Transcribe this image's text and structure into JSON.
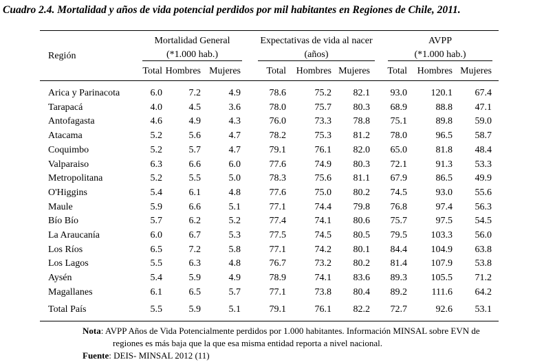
{
  "title": "Cuadro 2.4. Mortalidad y años de vida potencial perdidos por mil habitantes en Regiones de Chile, 2011.",
  "header": {
    "region": "Región",
    "groups": [
      {
        "line1": "Mortalidad General",
        "line2": "(*1.000 hab.)"
      },
      {
        "line1": "Expectativas de vida al nacer",
        "line2": "(años)"
      },
      {
        "line1": "AVPP",
        "line2": "(*1.000 hab.)"
      }
    ],
    "cols": [
      "Total",
      "Hombres",
      "Mujeres",
      "Total",
      "Hombres",
      "Mujeres",
      "Total",
      "Hombres",
      "Mujeres"
    ]
  },
  "rows": [
    {
      "region": "Arica y Parinacota",
      "values": [
        "6.0",
        "7.2",
        "4.9",
        "78.6",
        "75.2",
        "82.1",
        "93.0",
        "120.1",
        "67.4"
      ]
    },
    {
      "region": "Tarapacá",
      "values": [
        "4.0",
        "4.5",
        "3.6",
        "78.0",
        "75.7",
        "80.3",
        "68.9",
        "88.8",
        "47.1"
      ]
    },
    {
      "region": "Antofagasta",
      "values": [
        "4.6",
        "4.9",
        "4.3",
        "76.0",
        "73.3",
        "78.8",
        "75.1",
        "89.8",
        "59.0"
      ]
    },
    {
      "region": "Atacama",
      "values": [
        "5.2",
        "5.6",
        "4.7",
        "78.2",
        "75.3",
        "81.2",
        "78.0",
        "96.5",
        "58.7"
      ]
    },
    {
      "region": "Coquimbo",
      "values": [
        "5.2",
        "5.7",
        "4.7",
        "79.1",
        "76.1",
        "82.0",
        "65.0",
        "81.8",
        "48.4"
      ]
    },
    {
      "region": "Valparaiso",
      "values": [
        "6.3",
        "6.6",
        "6.0",
        "77.6",
        "74.9",
        "80.3",
        "72.1",
        "91.3",
        "53.3"
      ]
    },
    {
      "region": "Metropolitana",
      "values": [
        "5.2",
        "5.5",
        "5.0",
        "78.3",
        "75.6",
        "81.1",
        "67.9",
        "86.5",
        "49.9"
      ]
    },
    {
      "region": "O'Higgins",
      "values": [
        "5.4",
        "6.1",
        "4.8",
        "77.6",
        "75.0",
        "80.2",
        "74.5",
        "93.0",
        "55.6"
      ]
    },
    {
      "region": "Maule",
      "values": [
        "5.9",
        "6.6",
        "5.1",
        "77.1",
        "74.4",
        "79.8",
        "76.8",
        "97.4",
        "56.3"
      ]
    },
    {
      "region": "Bío Bío",
      "values": [
        "5.7",
        "6.2",
        "5.2",
        "77.4",
        "74.1",
        "80.6",
        "75.7",
        "97.5",
        "54.5"
      ]
    },
    {
      "region": "La Araucanía",
      "values": [
        "6.0",
        "6.7",
        "5.3",
        "77.5",
        "74.5",
        "80.5",
        "79.5",
        "103.3",
        "56.0"
      ]
    },
    {
      "region": "Los Ríos",
      "values": [
        "6.5",
        "7.2",
        "5.8",
        "77.1",
        "74.2",
        "80.1",
        "84.4",
        "104.9",
        "63.8"
      ]
    },
    {
      "region": "Los Lagos",
      "values": [
        "5.5",
        "6.3",
        "4.8",
        "76.7",
        "73.2",
        "80.2",
        "81.4",
        "107.9",
        "53.8"
      ]
    },
    {
      "region": "Aysén",
      "values": [
        "5.4",
        "5.9",
        "4.9",
        "78.9",
        "74.1",
        "83.6",
        "89.3",
        "105.5",
        "71.2"
      ]
    },
    {
      "region": "Magallanes",
      "values": [
        "6.1",
        "6.5",
        "5.7",
        "77.1",
        "73.8",
        "80.4",
        "89.2",
        "111.6",
        "64.2"
      ]
    }
  ],
  "total": {
    "region": "Total País",
    "values": [
      "5.5",
      "5.9",
      "5.1",
      "79.1",
      "76.1",
      "82.2",
      "72.7",
      "92.6",
      "53.1"
    ]
  },
  "note": {
    "label": "Nota",
    "line1": ": AVPP Años de Vida Potencialmente perdidos por 1.000 habitantes. Información MINSAL sobre EVN de",
    "line2": "regiones es más baja que la que esa misma entidad reporta a nivel nacional."
  },
  "source": {
    "label": "Fuente",
    "text": ": DEIS- MINSAL 2012 (11)"
  }
}
